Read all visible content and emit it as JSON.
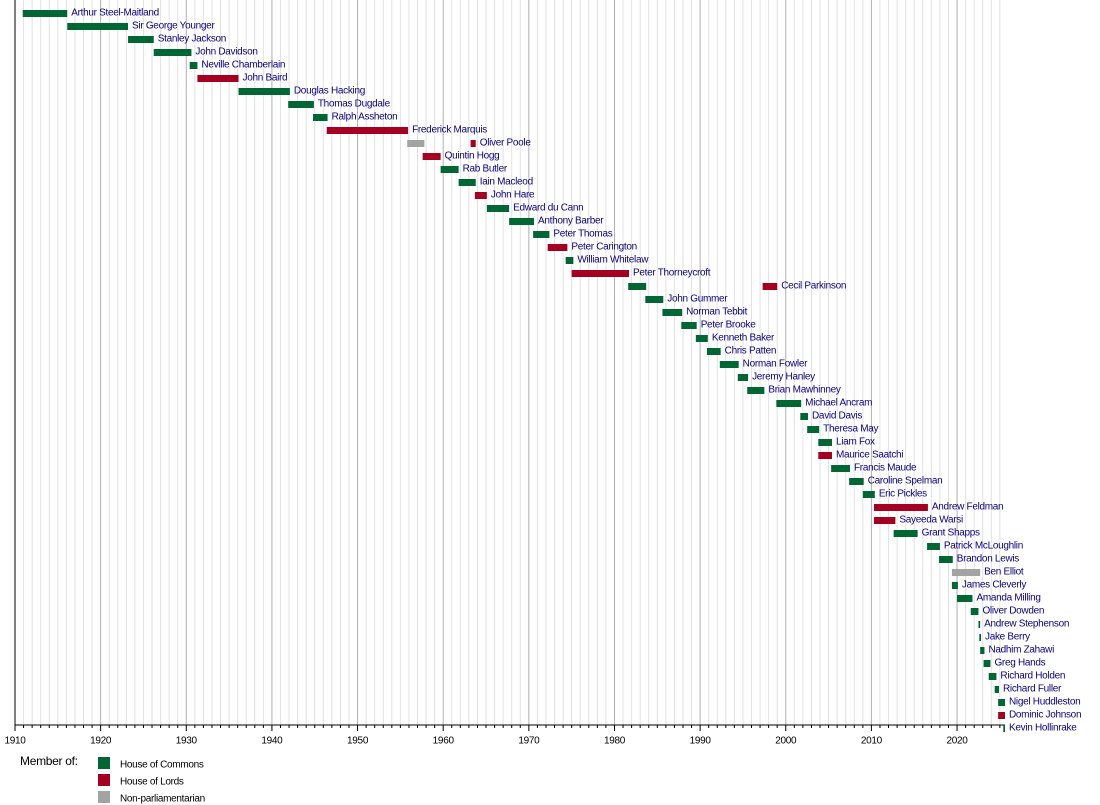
{
  "chart_data": {
    "type": "timeline",
    "xlim": [
      1910,
      2025.6
    ],
    "xticks": [
      1910,
      1920,
      1930,
      1940,
      1950,
      1960,
      1970,
      1980,
      1990,
      2000,
      2010,
      2020
    ],
    "minor_xticks": [
      1911,
      1912,
      1913,
      1914,
      1915,
      1916,
      1917,
      1918,
      1919,
      1921,
      1922,
      1923,
      1924,
      1925,
      1926,
      1927,
      1928,
      1929,
      1931,
      1932,
      1933,
      1934,
      1935,
      1936,
      1937,
      1938,
      1939,
      1941,
      1942,
      1943,
      1944,
      1945,
      1946,
      1947,
      1948,
      1949,
      1951,
      1952,
      1953,
      1954,
      1955,
      1956,
      1957,
      1958,
      1959,
      1961,
      1962,
      1963,
      1964,
      1965,
      1966,
      1967,
      1968,
      1969,
      1971,
      1972,
      1973,
      1974,
      1975,
      1976,
      1977,
      1978,
      1979,
      1981,
      1982,
      1983,
      1984,
      1985,
      1986,
      1987,
      1988,
      1989,
      1991,
      1992,
      1993,
      1994,
      1995,
      1996,
      1997,
      1998,
      1999,
      2001,
      2002,
      2003,
      2004,
      2005,
      2006,
      2007,
      2008,
      2009,
      2011,
      2012,
      2013,
      2014,
      2015,
      2016,
      2017,
      2018,
      2019,
      2021,
      2022,
      2023,
      2024,
      2025
    ],
    "grid": true,
    "legend_title": "Member of:",
    "houses": [
      {
        "name": "House of Commons",
        "color": "#006633"
      },
      {
        "name": "House of Lords",
        "color": "#a50021"
      },
      {
        "name": "Non-parliamentarian",
        "color": "#a3a3a3"
      }
    ],
    "rows": [
      {
        "name": "Arthur Steel-Maitland",
        "segments": [
          {
            "start": 1910.9,
            "end": 1916.1,
            "house": "House of Commons"
          }
        ]
      },
      {
        "name": "Sir George Younger",
        "segments": [
          {
            "start": 1916.1,
            "end": 1923.2,
            "house": "House of Commons"
          }
        ]
      },
      {
        "name": "Stanley Jackson",
        "segments": [
          {
            "start": 1923.2,
            "end": 1926.2,
            "house": "House of Commons"
          }
        ]
      },
      {
        "name": "John Davidson",
        "segments": [
          {
            "start": 1926.2,
            "end": 1930.6,
            "house": "House of Commons"
          }
        ]
      },
      {
        "name": "Neville Chamberlain",
        "segments": [
          {
            "start": 1930.4,
            "end": 1931.3,
            "house": "House of Commons"
          }
        ]
      },
      {
        "name": "John Baird",
        "segments": [
          {
            "start": 1931.3,
            "end": 1936.1,
            "house": "House of Lords"
          }
        ]
      },
      {
        "name": "Douglas Hacking",
        "segments": [
          {
            "start": 1936.1,
            "end": 1942.1,
            "house": "House of Commons"
          }
        ]
      },
      {
        "name": "Thomas Dugdale",
        "segments": [
          {
            "start": 1941.9,
            "end": 1944.9,
            "house": "House of Commons"
          }
        ]
      },
      {
        "name": "Ralph Assheton",
        "segments": [
          {
            "start": 1944.8,
            "end": 1946.5,
            "house": "House of Commons"
          }
        ]
      },
      {
        "name": "Frederick Marquis",
        "segments": [
          {
            "start": 1946.4,
            "end": 1955.9,
            "house": "House of Lords"
          }
        ]
      },
      {
        "name": "Oliver Poole",
        "segments": [
          {
            "start": 1955.8,
            "end": 1957.8,
            "house": "Non-parliamentarian"
          },
          {
            "start": 1963.2,
            "end": 1963.8,
            "house": "House of Lords"
          }
        ]
      },
      {
        "name": "Quintin Hogg",
        "segments": [
          {
            "start": 1957.6,
            "end": 1959.7,
            "house": "House of Lords"
          }
        ]
      },
      {
        "name": "Rab Butler",
        "segments": [
          {
            "start": 1959.7,
            "end": 1961.8,
            "house": "House of Commons"
          }
        ]
      },
      {
        "name": "Iain Macleod",
        "segments": [
          {
            "start": 1961.8,
            "end": 1963.8,
            "house": "House of Commons"
          }
        ]
      },
      {
        "name": "John Hare",
        "segments": [
          {
            "start": 1963.7,
            "end": 1965.1,
            "house": "House of Lords"
          }
        ]
      },
      {
        "name": "Edward du Cann",
        "segments": [
          {
            "start": 1965.1,
            "end": 1967.7,
            "house": "House of Commons"
          }
        ]
      },
      {
        "name": "Anthony Barber",
        "segments": [
          {
            "start": 1967.7,
            "end": 1970.6,
            "house": "House of Commons"
          }
        ]
      },
      {
        "name": "Peter Thomas",
        "segments": [
          {
            "start": 1970.5,
            "end": 1972.4,
            "house": "House of Commons"
          }
        ]
      },
      {
        "name": "Peter Carington",
        "segments": [
          {
            "start": 1972.2,
            "end": 1974.5,
            "house": "House of Lords"
          }
        ]
      },
      {
        "name": "William Whitelaw",
        "segments": [
          {
            "start": 1974.3,
            "end": 1975.2,
            "house": "House of Commons"
          }
        ]
      },
      {
        "name": "Peter Thorneycroft",
        "segments": [
          {
            "start": 1975.0,
            "end": 1981.7,
            "house": "House of Lords"
          }
        ]
      },
      {
        "name": "Cecil Parkinson",
        "segments": [
          {
            "start": 1981.6,
            "end": 1983.7,
            "house": "House of Commons"
          },
          {
            "start": 1997.3,
            "end": 1999.0,
            "house": "House of Lords"
          }
        ]
      },
      {
        "name": "John Gummer",
        "segments": [
          {
            "start": 1983.6,
            "end": 1985.7,
            "house": "House of Commons"
          }
        ]
      },
      {
        "name": "Norman Tebbit",
        "segments": [
          {
            "start": 1985.6,
            "end": 1987.9,
            "house": "House of Commons"
          }
        ]
      },
      {
        "name": "Peter Brooke",
        "segments": [
          {
            "start": 1987.8,
            "end": 1989.6,
            "house": "House of Commons"
          }
        ]
      },
      {
        "name": "Kenneth Baker",
        "segments": [
          {
            "start": 1989.5,
            "end": 1990.9,
            "house": "House of Commons"
          }
        ]
      },
      {
        "name": "Chris Patten",
        "segments": [
          {
            "start": 1990.8,
            "end": 1992.4,
            "house": "House of Commons"
          }
        ]
      },
      {
        "name": "Norman Fowler",
        "segments": [
          {
            "start": 1992.3,
            "end": 1994.5,
            "house": "House of Commons"
          }
        ]
      },
      {
        "name": "Jeremy Hanley",
        "segments": [
          {
            "start": 1994.4,
            "end": 1995.6,
            "house": "House of Commons"
          }
        ]
      },
      {
        "name": "Brian Mawhinney",
        "segments": [
          {
            "start": 1995.5,
            "end": 1997.5,
            "house": "House of Commons"
          }
        ]
      },
      {
        "name": "Michael Ancram",
        "segments": [
          {
            "start": 1998.9,
            "end": 2001.8,
            "house": "House of Commons"
          }
        ]
      },
      {
        "name": "David Davis",
        "segments": [
          {
            "start": 2001.7,
            "end": 2002.6,
            "house": "House of Commons"
          }
        ]
      },
      {
        "name": "Theresa May",
        "segments": [
          {
            "start": 2002.5,
            "end": 2003.9,
            "house": "House of Commons"
          }
        ]
      },
      {
        "name": "Liam Fox",
        "segments": [
          {
            "start": 2003.8,
            "end": 2005.4,
            "house": "House of Commons"
          }
        ]
      },
      {
        "name": "Maurice Saatchi",
        "segments": [
          {
            "start": 2003.8,
            "end": 2005.4,
            "house": "House of Lords"
          }
        ]
      },
      {
        "name": "Francis Maude",
        "segments": [
          {
            "start": 2005.3,
            "end": 2007.5,
            "house": "House of Commons"
          }
        ]
      },
      {
        "name": "Caroline Spelman",
        "segments": [
          {
            "start": 2007.4,
            "end": 2009.1,
            "house": "House of Commons"
          }
        ]
      },
      {
        "name": "Eric Pickles",
        "segments": [
          {
            "start": 2009.0,
            "end": 2010.4,
            "house": "House of Commons"
          }
        ]
      },
      {
        "name": "Andrew Feldman",
        "segments": [
          {
            "start": 2010.3,
            "end": 2016.6,
            "house": "House of Lords"
          }
        ]
      },
      {
        "name": "Sayeeda Warsi",
        "segments": [
          {
            "start": 2010.3,
            "end": 2012.8,
            "house": "House of Lords"
          }
        ]
      },
      {
        "name": "Grant Shapps",
        "segments": [
          {
            "start": 2012.6,
            "end": 2015.4,
            "house": "House of Commons"
          }
        ]
      },
      {
        "name": "Patrick McLoughlin",
        "segments": [
          {
            "start": 2016.5,
            "end": 2018.0,
            "house": "House of Commons"
          }
        ]
      },
      {
        "name": "Brandon Lewis",
        "segments": [
          {
            "start": 2017.9,
            "end": 2019.5,
            "house": "House of Commons"
          }
        ]
      },
      {
        "name": "Ben Elliot",
        "segments": [
          {
            "start": 2019.4,
            "end": 2022.7,
            "house": "Non-parliamentarian"
          }
        ]
      },
      {
        "name": "James Cleverly",
        "segments": [
          {
            "start": 2019.4,
            "end": 2020.1,
            "house": "House of Commons"
          }
        ]
      },
      {
        "name": "Amanda Milling",
        "segments": [
          {
            "start": 2020.0,
            "end": 2021.8,
            "house": "House of Commons"
          }
        ]
      },
      {
        "name": "Oliver Dowden",
        "segments": [
          {
            "start": 2021.6,
            "end": 2022.5,
            "house": "House of Commons"
          }
        ]
      },
      {
        "name": "Andrew Stephenson",
        "segments": [
          {
            "start": 2022.5,
            "end": 2022.7,
            "house": "House of Commons"
          }
        ]
      },
      {
        "name": "Jake Berry",
        "segments": [
          {
            "start": 2022.6,
            "end": 2022.8,
            "house": "House of Commons"
          }
        ]
      },
      {
        "name": "Nadhim Zahawi",
        "segments": [
          {
            "start": 2022.7,
            "end": 2023.2,
            "house": "House of Commons"
          }
        ]
      },
      {
        "name": "Greg Hands",
        "segments": [
          {
            "start": 2023.1,
            "end": 2023.9,
            "house": "House of Commons"
          }
        ]
      },
      {
        "name": "Richard Holden",
        "segments": [
          {
            "start": 2023.7,
            "end": 2024.6,
            "house": "House of Commons"
          }
        ]
      },
      {
        "name": "Richard Fuller",
        "segments": [
          {
            "start": 2024.4,
            "end": 2024.9,
            "house": "House of Commons"
          }
        ]
      },
      {
        "name": "Nigel Huddleston",
        "segments": [
          {
            "start": 2024.8,
            "end": 2025.6,
            "house": "House of Commons"
          }
        ]
      },
      {
        "name": "Dominic Johnson",
        "segments": [
          {
            "start": 2024.8,
            "end": 2025.6,
            "house": "House of Lords"
          }
        ]
      },
      {
        "name": "Kevin Hollinrake",
        "segments": [
          {
            "start": 2025.4,
            "end": 2025.6,
            "house": "House of Commons"
          }
        ]
      }
    ]
  }
}
